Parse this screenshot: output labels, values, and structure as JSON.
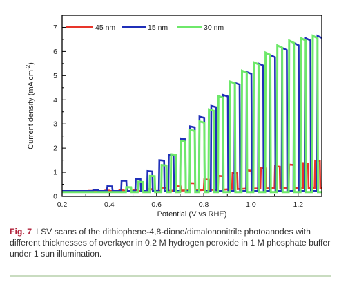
{
  "chart_data": {
    "type": "line",
    "xlabel": "Potential (V vs RHE)",
    "ylabel": "Current density (mA cm-2)",
    "ylabel_main": "Current density (mA cm",
    "ylabel_sup": "-2",
    "ylabel_end": ")",
    "xlim": [
      0.2,
      1.3
    ],
    "ylim": [
      0,
      7.5
    ],
    "xticks": [
      0.2,
      0.4,
      0.6,
      0.8,
      1.0,
      1.2
    ],
    "xtick_labels": [
      "0.2",
      "0.4",
      "0.6",
      "0.8",
      "1.0",
      "1.2"
    ],
    "yticks": [
      0,
      1,
      2,
      3,
      4,
      5,
      6,
      7
    ],
    "ytick_labels": [
      "0",
      "1",
      "2",
      "3",
      "4",
      "5",
      "6",
      "7"
    ],
    "legend_position": "top",
    "series": [
      {
        "name": "45 nm",
        "color": "#e8352a",
        "pulses": [
          [
            0.31,
            0.22,
            0.23
          ],
          [
            0.38,
            0.22,
            0.24
          ],
          [
            0.44,
            0.22,
            0.25
          ],
          [
            0.5,
            0.22,
            0.27
          ],
          [
            0.56,
            0.22,
            0.3
          ],
          [
            0.62,
            0.23,
            0.36
          ],
          [
            0.68,
            0.24,
            0.42
          ],
          [
            0.74,
            0.25,
            0.55
          ],
          [
            0.8,
            0.27,
            0.7
          ],
          [
            0.86,
            0.28,
            0.85
          ],
          [
            0.92,
            0.3,
            0.98
          ],
          [
            0.98,
            0.32,
            1.08
          ],
          [
            1.04,
            0.33,
            1.18
          ],
          [
            1.1,
            0.34,
            1.25
          ],
          [
            1.16,
            0.34,
            1.32
          ],
          [
            1.22,
            0.35,
            1.38
          ],
          [
            1.27,
            0.35,
            1.48
          ]
        ]
      },
      {
        "name": "15 nm",
        "color": "#1f2fb8",
        "pulses": [
          [
            0.33,
            0.22,
            0.27
          ],
          [
            0.39,
            0.22,
            0.42
          ],
          [
            0.45,
            0.22,
            0.65
          ],
          [
            0.51,
            0.22,
            0.72
          ],
          [
            0.56,
            0.22,
            1.05
          ],
          [
            0.61,
            0.22,
            1.5
          ],
          [
            0.65,
            0.22,
            1.72
          ],
          [
            0.7,
            0.22,
            2.4
          ],
          [
            0.74,
            0.22,
            2.9
          ],
          [
            0.78,
            0.22,
            3.3
          ],
          [
            0.83,
            0.22,
            3.75
          ],
          [
            0.88,
            0.22,
            4.2
          ],
          [
            0.93,
            0.22,
            4.7
          ],
          [
            0.98,
            0.22,
            5.15
          ],
          [
            1.03,
            0.22,
            5.5
          ],
          [
            1.08,
            0.22,
            5.85
          ],
          [
            1.13,
            0.22,
            6.15
          ],
          [
            1.18,
            0.22,
            6.35
          ],
          [
            1.23,
            0.22,
            6.55
          ],
          [
            1.28,
            0.22,
            6.65
          ]
        ]
      },
      {
        "name": "30 nm",
        "color": "#6ee86a",
        "pulses": [
          [
            0.47,
            0.18,
            0.38
          ],
          [
            0.52,
            0.18,
            0.6
          ],
          [
            0.57,
            0.18,
            0.85
          ],
          [
            0.62,
            0.18,
            1.3
          ],
          [
            0.66,
            0.18,
            1.75
          ],
          [
            0.7,
            0.18,
            2.3
          ],
          [
            0.74,
            0.18,
            2.75
          ],
          [
            0.78,
            0.18,
            3.1
          ],
          [
            0.82,
            0.18,
            3.6
          ],
          [
            0.86,
            0.18,
            4.15
          ],
          [
            0.91,
            0.18,
            4.75
          ],
          [
            0.96,
            0.18,
            5.2
          ],
          [
            1.01,
            0.18,
            5.55
          ],
          [
            1.06,
            0.18,
            5.95
          ],
          [
            1.11,
            0.18,
            6.25
          ],
          [
            1.16,
            0.18,
            6.45
          ],
          [
            1.21,
            0.18,
            6.55
          ],
          [
            1.26,
            0.18,
            6.65
          ]
        ]
      }
    ]
  },
  "caption": {
    "label": "Fig. 7",
    "text": "LSV scans of the dithiophene-4,8-dione/dimalononitrile photoanodes with different thicknesses of overlayer in 0.2 M hydrogen peroxide in 1 M phosphate buffer under 1 sun illumination."
  },
  "colors": {
    "axis": "#000000",
    "caption_label": "#b0223a",
    "rule": "#c9dcc0"
  }
}
